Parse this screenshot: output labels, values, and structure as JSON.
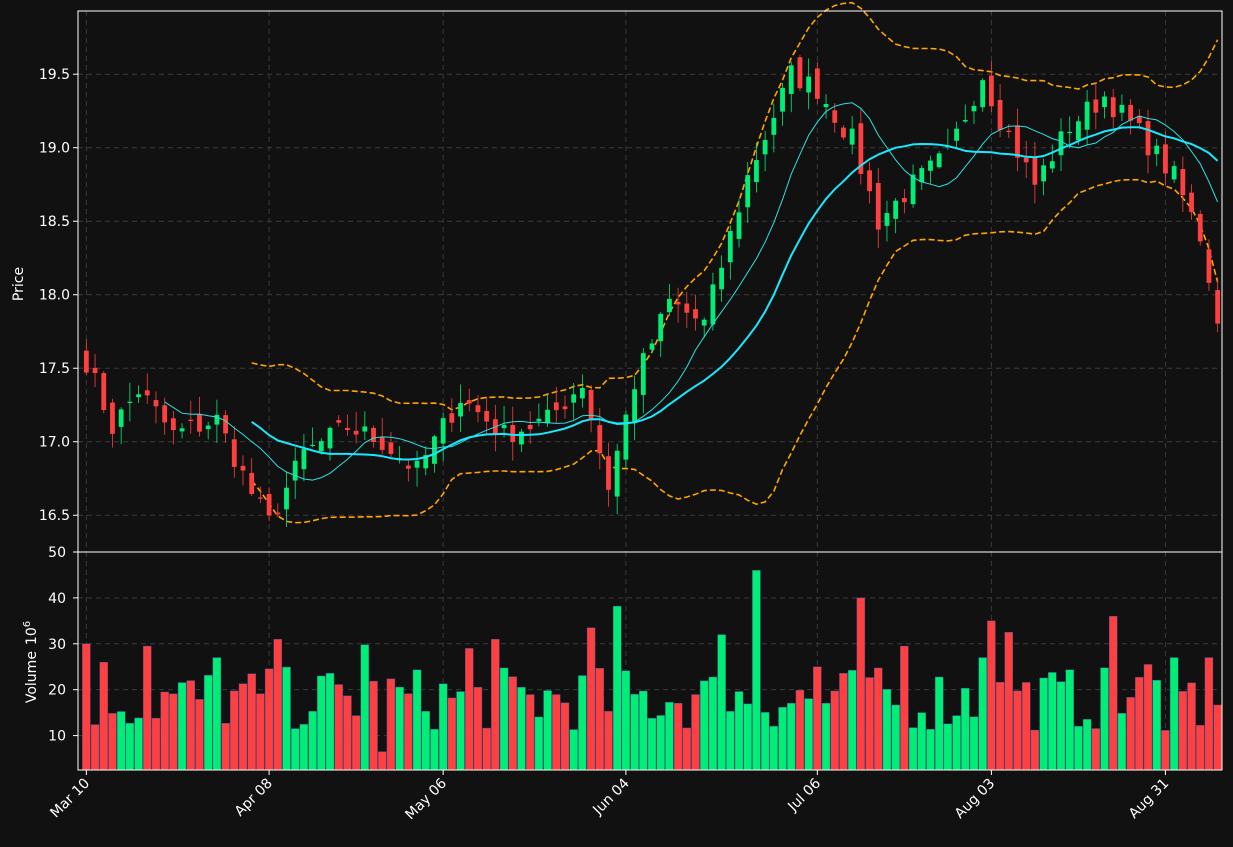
{
  "chart_data": [
    {
      "type": "candlestick",
      "title": "",
      "ylabel": "Price",
      "ylim": [
        16.25,
        19.93
      ],
      "yticks": [
        16.5,
        17.0,
        17.5,
        18.0,
        18.5,
        19.0,
        19.5
      ],
      "ytick_labels": [
        "16.5",
        "17.0",
        "17.5",
        "18.0",
        "18.5",
        "19.0",
        "19.5"
      ],
      "grid": true,
      "x_ticks": [
        {
          "date": "2020-03-10",
          "label": "Mar 10"
        },
        {
          "date": "2020-04-08",
          "label": "Apr 08"
        },
        {
          "date": "2020-05-06",
          "label": "May 06"
        },
        {
          "date": "2020-06-04",
          "label": "Jun 04"
        },
        {
          "date": "2020-07-06",
          "label": "Jul 06"
        },
        {
          "date": "2020-08-03",
          "label": "Aug 03"
        },
        {
          "date": "2020-08-31",
          "label": "Aug 31"
        }
      ],
      "up_color": "#00ee76",
      "down_color": "#ff4040",
      "ma_fast_color": "#2de0e0",
      "ma_slow_color": "#1be8ff",
      "band_color": "#ffa500",
      "keypoints": [
        {
          "date": "2020-03-10",
          "close": 17.55
        },
        {
          "date": "2020-03-13",
          "close": 17.1
        },
        {
          "date": "2020-03-18",
          "close": 17.35
        },
        {
          "date": "2020-03-24",
          "close": 17.05
        },
        {
          "date": "2020-03-31",
          "close": 17.15
        },
        {
          "date": "2020-04-06",
          "close": 16.65
        },
        {
          "date": "2020-04-08",
          "close": 16.45
        },
        {
          "date": "2020-04-14",
          "close": 16.92
        },
        {
          "date": "2020-04-21",
          "close": 17.1
        },
        {
          "date": "2020-04-27",
          "close": 17.0
        },
        {
          "date": "2020-05-01",
          "close": 16.8
        },
        {
          "date": "2020-05-08",
          "close": 17.3
        },
        {
          "date": "2020-05-15",
          "close": 17.05
        },
        {
          "date": "2020-05-22",
          "close": 17.15
        },
        {
          "date": "2020-05-28",
          "close": 17.4
        },
        {
          "date": "2020-06-02",
          "close": 16.7
        },
        {
          "date": "2020-06-05",
          "close": 17.4
        },
        {
          "date": "2020-06-11",
          "close": 17.95
        },
        {
          "date": "2020-06-17",
          "close": 17.8
        },
        {
          "date": "2020-06-24",
          "close": 18.8
        },
        {
          "date": "2020-07-01",
          "close": 19.5
        },
        {
          "date": "2020-07-06",
          "close": 19.4
        },
        {
          "date": "2020-07-10",
          "close": 19.05
        },
        {
          "date": "2020-07-15",
          "close": 18.5
        },
        {
          "date": "2020-07-21",
          "close": 18.75
        },
        {
          "date": "2020-07-27",
          "close": 18.95
        },
        {
          "date": "2020-07-31",
          "close": 19.5
        },
        {
          "date": "2020-08-04",
          "close": 19.2
        },
        {
          "date": "2020-08-10",
          "close": 18.75
        },
        {
          "date": "2020-08-14",
          "close": 19.15
        },
        {
          "date": "2020-08-20",
          "close": 19.35
        },
        {
          "date": "2020-08-26",
          "close": 19.1
        },
        {
          "date": "2020-09-01",
          "close": 18.8
        },
        {
          "date": "2020-09-04",
          "close": 18.4
        },
        {
          "date": "2020-09-08",
          "close": 17.85
        }
      ]
    },
    {
      "type": "bar",
      "ylabel": "Volume",
      "ylabel_unit_exponent": "6",
      "ylim": [
        2.5,
        50
      ],
      "yticks": [
        10,
        20,
        30,
        40,
        50
      ],
      "ytick_labels": [
        "10",
        "20",
        "30",
        "40",
        "50"
      ],
      "grid": true,
      "volume_keypoints": [
        {
          "date": "2020-03-10",
          "value": 30
        },
        {
          "date": "2020-03-12",
          "value": 26
        },
        {
          "date": "2020-03-19",
          "value": 29.5
        },
        {
          "date": "2020-03-31",
          "value": 27
        },
        {
          "date": "2020-04-09",
          "value": 31
        },
        {
          "date": "2020-04-23",
          "value": 29.8
        },
        {
          "date": "2020-04-27",
          "value": 6.5
        },
        {
          "date": "2020-05-11",
          "value": 29
        },
        {
          "date": "2020-05-14",
          "value": 31
        },
        {
          "date": "2020-05-29",
          "value": 33.5
        },
        {
          "date": "2020-06-03",
          "value": 38.2
        },
        {
          "date": "2020-06-19",
          "value": 32
        },
        {
          "date": "2020-06-25",
          "value": 46
        },
        {
          "date": "2020-07-06",
          "value": 25
        },
        {
          "date": "2020-07-13",
          "value": 40
        },
        {
          "date": "2020-07-20",
          "value": 29.5
        },
        {
          "date": "2020-07-31",
          "value": 27
        },
        {
          "date": "2020-08-03",
          "value": 35
        },
        {
          "date": "2020-08-05",
          "value": 32.5
        },
        {
          "date": "2020-08-21",
          "value": 36
        },
        {
          "date": "2020-08-27",
          "value": 25.5
        },
        {
          "date": "2020-09-01",
          "value": 27
        },
        {
          "date": "2020-09-07",
          "value": 27
        }
      ]
    }
  ]
}
